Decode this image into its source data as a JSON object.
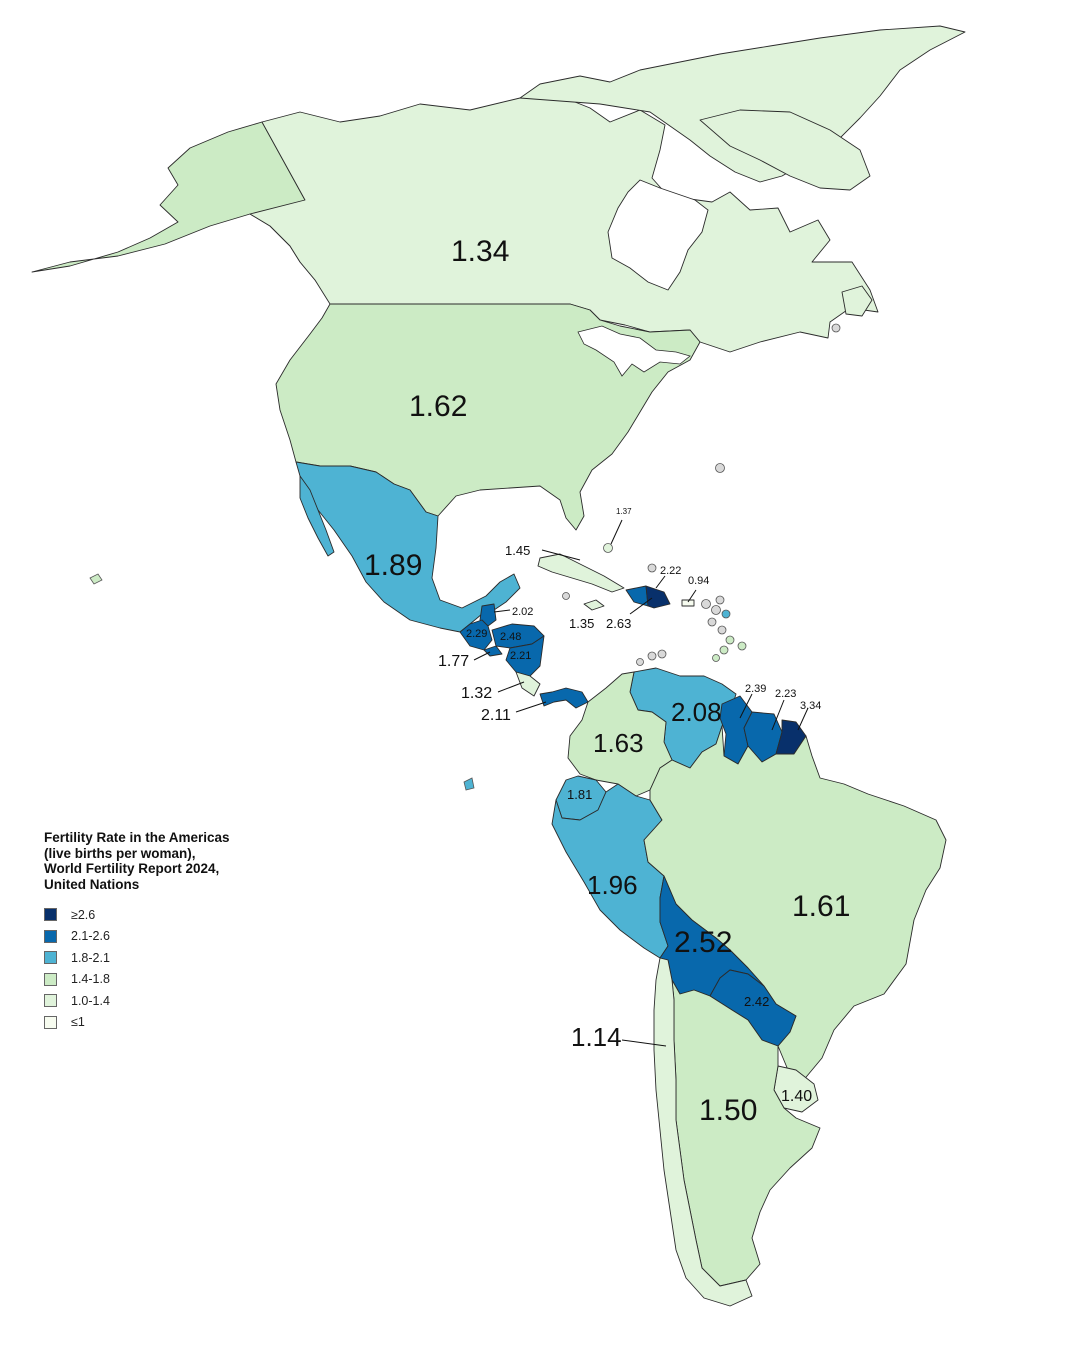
{
  "legend": {
    "title": "Fertility Rate in the Americas (live births per woman), World Fertility Report 2024, United Nations",
    "classes": [
      {
        "label": "≥2.6",
        "color": "#08306b"
      },
      {
        "label": "2.1-2.6",
        "color": "#0868ac"
      },
      {
        "label": "1.8-2.1",
        "color": "#4eb3d3"
      },
      {
        "label": "1.4-1.8",
        "color": "#ccebc5"
      },
      {
        "label": "1.0-1.4",
        "color": "#e0f3db"
      },
      {
        "label": "≤1",
        "color": "#f7fcf0"
      }
    ]
  },
  "rates": {
    "canada": "1.34",
    "usa": "1.62",
    "mexico": "1.89",
    "cuba": "1.45",
    "bahamas": "1.37",
    "haiti": "2.22",
    "dominican_republic": "2.63",
    "puerto_rico": "0.94",
    "jamaica": "1.35",
    "belize": "2.02",
    "guatemala": "2.29",
    "honduras": "2.48",
    "nicaragua": "2.21",
    "el_salvador": "1.77",
    "costa_rica": "1.32",
    "panama": "2.11",
    "venezuela": "2.08",
    "guyana": "2.39",
    "suriname": "2.23",
    "french_guiana": "3.34",
    "colombia": "1.63",
    "ecuador": "1.81",
    "peru": "1.96",
    "bolivia": "2.52",
    "brazil": "1.61",
    "paraguay": "2.42",
    "chile": "1.14",
    "argentina": "1.50",
    "uruguay": "1.40"
  }
}
